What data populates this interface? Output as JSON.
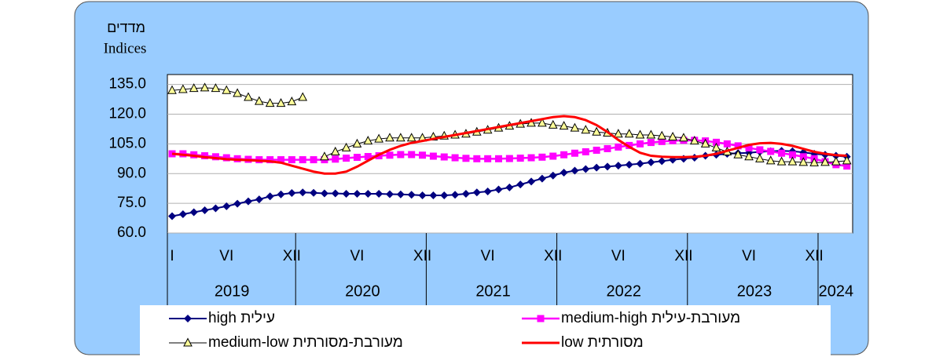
{
  "chart_data": {
    "type": "line",
    "ylabel": "מדדים",
    "ylabel_en": "Indices",
    "categories": [
      "I",
      null,
      null,
      null,
      null,
      "VI",
      null,
      null,
      null,
      null,
      null,
      "XII",
      null,
      null,
      null,
      null,
      null,
      "VI",
      null,
      null,
      null,
      null,
      null,
      "XII",
      null,
      null,
      null,
      null,
      null,
      "VI",
      null,
      null,
      null,
      null,
      null,
      "XII",
      null,
      null,
      null,
      null,
      null,
      "VI",
      null,
      null,
      null,
      null,
      null,
      "XII",
      null,
      null,
      null,
      null,
      null,
      "VI",
      null,
      null,
      null,
      null,
      null,
      "XII",
      null,
      null,
      null
    ],
    "years": [
      "2019",
      "2020",
      "2021",
      "2022",
      "2023",
      "2024"
    ],
    "ylim": [
      60,
      140
    ],
    "yticks": [
      {
        "value": 60,
        "label": "60.0"
      },
      {
        "value": 75,
        "label": "75.0"
      },
      {
        "value": 90,
        "label": "90.0"
      },
      {
        "value": 105,
        "label": "105.0"
      },
      {
        "value": 120,
        "label": "120.0"
      },
      {
        "value": 135,
        "label": "135.0"
      }
    ],
    "grid": true,
    "series": [
      {
        "name": "high עילית",
        "color": "#000080",
        "marker": "diamond",
        "values": [
          68.5,
          69.5,
          70.5,
          71.5,
          72.5,
          73.5,
          74.8,
          76,
          77,
          78.5,
          79.5,
          80.2,
          80.5,
          80.3,
          80,
          80,
          79.8,
          79.8,
          79.8,
          79.8,
          79.6,
          79.5,
          79.3,
          79,
          79,
          79,
          79.3,
          79.8,
          80.5,
          81,
          82,
          83,
          84.5,
          86,
          87.5,
          89,
          90.5,
          91.5,
          92.3,
          93,
          93.5,
          94,
          94.5,
          95,
          95.7,
          96.3,
          97,
          97.5,
          98,
          99,
          99.5,
          100,
          100.3,
          100.5,
          101,
          101.3,
          101.5,
          101.3,
          100.7,
          100,
          99.5,
          99,
          98.5
        ]
      },
      {
        "name": "medium-high מעורבת-עילית",
        "color": "#ff00ff",
        "marker": "square",
        "values": [
          100,
          100,
          99.5,
          99,
          98.5,
          98,
          97.5,
          97.2,
          97,
          97,
          97,
          97,
          97,
          97,
          97,
          97.3,
          97.8,
          98.2,
          98.6,
          99,
          99.3,
          99.6,
          99.6,
          99.3,
          98.8,
          98.4,
          98,
          97.7,
          97.5,
          97.5,
          97.5,
          97.6,
          97.8,
          98,
          98.3,
          98.8,
          99.5,
          100.3,
          101,
          101.8,
          102.6,
          103.4,
          104.2,
          105,
          105.7,
          106.2,
          106.6,
          106.8,
          106.8,
          106.5,
          105.8,
          105,
          104,
          103,
          102,
          101.2,
          100.3,
          99.5,
          98.5,
          97.5,
          96,
          94.5,
          93.8
        ]
      },
      {
        "name": "medium-low מעורבת-מסורתית",
        "color": "#ffff99",
        "marker": "triangle",
        "values": [
          132,
          132.5,
          133,
          133.3,
          133,
          132,
          130.5,
          128.5,
          126.5,
          125.5,
          125.5,
          126.3,
          128.5,
          null,
          98.5,
          101,
          103,
          105,
          106.5,
          107.5,
          108,
          108,
          108,
          108,
          108.5,
          109,
          109.5,
          110,
          111,
          112,
          113,
          114,
          115,
          115.5,
          115.5,
          114.5,
          114,
          113,
          112,
          111,
          110.5,
          110,
          110,
          109.5,
          109.5,
          109,
          108.5,
          108,
          106.5,
          105,
          103,
          101,
          99.5,
          98.5,
          97.5,
          96.5,
          96,
          96,
          95.7,
          95.5,
          95.7,
          96,
          96.5
        ]
      },
      {
        "name": "low מסורתית",
        "color": "#ff0000",
        "marker": "none",
        "values": [
          100,
          99.5,
          99,
          98.3,
          97.8,
          97.3,
          97,
          96.8,
          96.5,
          96.2,
          95.5,
          94,
          92.5,
          91,
          90,
          90,
          91,
          93.5,
          96.5,
          99.5,
          102,
          104,
          105.5,
          106.5,
          107.5,
          108.5,
          109.5,
          110.5,
          111.5,
          112.5,
          113.5,
          114.5,
          115.5,
          116.5,
          117.5,
          118.5,
          119,
          118.5,
          117,
          114.5,
          111,
          107,
          103.5,
          100.5,
          99,
          98.5,
          98.3,
          98.3,
          98.5,
          99,
          100,
          101.5,
          103,
          104.5,
          105.3,
          105.5,
          105,
          104,
          102.5,
          101,
          100,
          99.3,
          99
        ]
      }
    ]
  }
}
